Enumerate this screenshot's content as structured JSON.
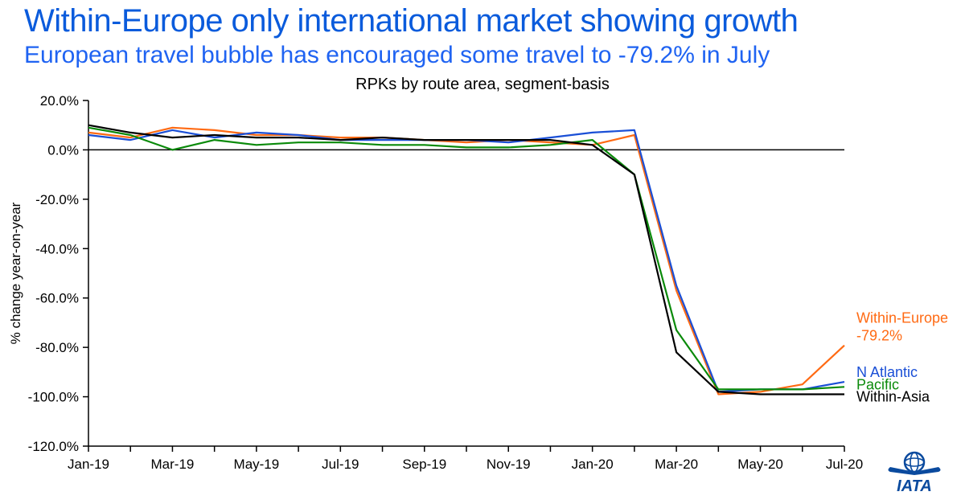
{
  "title": {
    "text": "Within-Europe only international market showing growth",
    "color": "#0a5bdc"
  },
  "subtitle": {
    "text": "European travel bubble has encouraged some travel to -79.2% in July",
    "color": "#1f63f2"
  },
  "chart": {
    "title": "RPKs by route area, segment-basis",
    "type": "line",
    "background_color": "#ffffff",
    "axis_color": "#000000",
    "zero_line_color": "#000000",
    "line_width": 2.2,
    "y_axis": {
      "label": "% change year-on-year",
      "min": -120,
      "max": 20,
      "tick_step": 20,
      "tick_format_suffix": ".0%"
    },
    "x_axis": {
      "categories": [
        "Jan-19",
        "Feb-19",
        "Mar-19",
        "Apr-19",
        "May-19",
        "Jun-19",
        "Jul-19",
        "Aug-19",
        "Sep-19",
        "Oct-19",
        "Nov-19",
        "Dec-19",
        "Jan-20",
        "Feb-20",
        "Mar-20",
        "Apr-20",
        "May-20",
        "Jun-20",
        "Jul-20"
      ],
      "visible_labels": [
        "Jan-19",
        "Mar-19",
        "May-19",
        "Jul-19",
        "Sep-19",
        "Nov-19",
        "Jan-20",
        "Mar-20",
        "May-20",
        "Jul-20"
      ]
    },
    "series": [
      {
        "name": "Within-Europe",
        "color": "#ff6a13",
        "values": [
          7,
          5,
          9,
          8,
          6,
          6,
          5,
          5,
          4,
          3,
          4,
          3,
          2,
          6,
          -57,
          -99,
          -98,
          -95,
          -79.2
        ],
        "legend_value": "-79.2%"
      },
      {
        "name": "N Atlantic",
        "color": "#1a4fd6",
        "values": [
          6,
          4,
          8,
          5,
          7,
          6,
          4,
          4,
          4,
          4,
          3,
          5,
          7,
          8,
          -55,
          -98,
          -97,
          -97,
          -94
        ],
        "legend_value": ""
      },
      {
        "name": "Pacific",
        "color": "#0a8a0a",
        "values": [
          9,
          6,
          0,
          4,
          2,
          3,
          3,
          2,
          2,
          1,
          1,
          2,
          4,
          -10,
          -73,
          -97,
          -97,
          -97,
          -96
        ],
        "legend_value": ""
      },
      {
        "name": "Within-Asia",
        "color": "#000000",
        "values": [
          10,
          7,
          5,
          6,
          5,
          5,
          4,
          5,
          4,
          4,
          4,
          4,
          2,
          -10,
          -82,
          -98,
          -99,
          -99,
          -99
        ],
        "legend_value": ""
      }
    ],
    "legend": {
      "labels": [
        {
          "line1": "Within-Europe",
          "line2": "-79.2%",
          "color": "#ff6a13"
        },
        {
          "line1": "N Atlantic",
          "line2": "",
          "color": "#1a4fd6"
        },
        {
          "line1": "Pacific",
          "line2": "",
          "color": "#0a8a0a"
        },
        {
          "line1": "Within-Asia",
          "line2": "",
          "color": "#000000"
        }
      ]
    }
  },
  "logo": {
    "name": "IATA",
    "color": "#0a4a9e"
  }
}
